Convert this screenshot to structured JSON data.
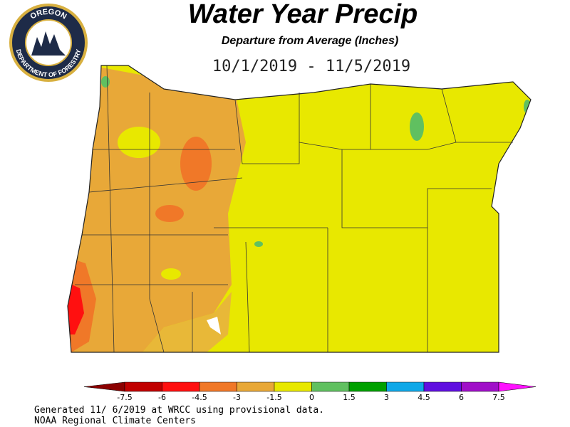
{
  "header": {
    "title": "Water Year Precip",
    "subtitle": "Departure from Average (Inches)",
    "date_range": "10/1/2019 - 11/5/2019"
  },
  "logo": {
    "top": "OREGON",
    "bottom": "DEPARTMENT OF FORESTRY"
  },
  "legend": {
    "labels": [
      "-7.5",
      "-6",
      "-4.5",
      "-3",
      "-1.5",
      "0",
      "1.5",
      "3",
      "4.5",
      "6",
      "7.5"
    ],
    "colors": [
      "#8b0000",
      "#c00000",
      "#ff1010",
      "#f07828",
      "#e8a838",
      "#e8e800",
      "#60c060",
      "#00a000",
      "#10a8e8",
      "#6010e0",
      "#a010c8",
      "#ff10ff"
    ]
  },
  "footer": {
    "line1": "Generated 11/ 6/2019 at WRCC using provisional data.",
    "line2": "NOAA Regional Climate Centers"
  }
}
